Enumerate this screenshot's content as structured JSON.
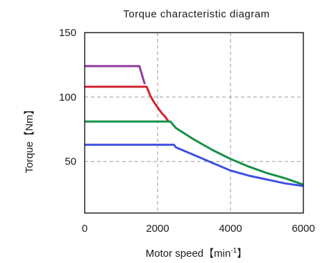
{
  "chart_data": {
    "type": "line",
    "title": "Torque characteristic diagram",
    "xlabel": {
      "text": "Motor speed【min",
      "superscript": "-1",
      "suffix": "】"
    },
    "ylabel": "Torque【Nm】",
    "xlim": [
      0,
      6000
    ],
    "ylim": [
      10,
      150
    ],
    "xticks": [
      0,
      2000,
      4000,
      6000
    ],
    "yticks": [
      50,
      100,
      150
    ],
    "xtick_labels": [
      "0",
      "2000",
      "4000",
      "6000"
    ],
    "ytick_labels": [
      "50",
      "100",
      "150"
    ],
    "grid": true,
    "series": [
      {
        "color": "#8e3b9a",
        "x": [
          0,
          1500,
          1650
        ],
        "y": [
          124,
          124,
          110
        ]
      },
      {
        "color": "#d4202c",
        "x": [
          0,
          1700,
          1800,
          1900,
          2000,
          2100,
          2200,
          2300
        ],
        "y": [
          108,
          108,
          101,
          96,
          92,
          88,
          85,
          81
        ]
      },
      {
        "color": "#139146",
        "x": [
          0,
          2350,
          2500,
          3000,
          3500,
          4000,
          4500,
          5000,
          5500,
          6000
        ],
        "y": [
          81,
          81,
          76,
          67,
          59,
          52,
          46,
          41,
          37,
          32
        ]
      },
      {
        "color": "#3d4fe0",
        "x": [
          0,
          2450,
          2500,
          3000,
          3500,
          4000,
          4500,
          5000,
          5500,
          6000
        ],
        "y": [
          63,
          63,
          61,
          55,
          49,
          43,
          39,
          36,
          33,
          31
        ]
      }
    ]
  }
}
